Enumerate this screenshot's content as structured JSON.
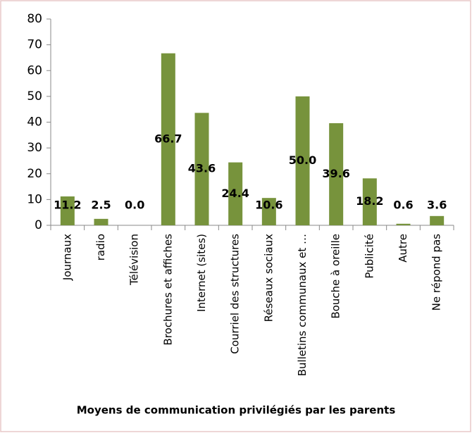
{
  "chart_data": {
    "type": "bar",
    "title": "Moyens de communication privilégiés par les parents",
    "categories": [
      "Journaux",
      "radio",
      "Télévision",
      "Brochures et affiches",
      "Internet (sites)",
      "Courriel des structures",
      "Réseaux sociaux",
      "Bulletins communaux et …",
      "Bouche à oreille",
      "Publicité",
      "Autre",
      "Ne répond pas"
    ],
    "values": [
      11.2,
      2.5,
      0,
      66.7,
      43.6,
      24.4,
      10.6,
      50,
      39.6,
      18.2,
      0.6,
      3.6
    ],
    "value_labels": [
      "11.2",
      "2.5",
      "0.0",
      "66.7",
      "43.6",
      "24.4",
      "10.6",
      "50.0",
      "39.6",
      "18.2",
      "0.6",
      "3.6"
    ],
    "color": "#77933c",
    "ylim": [
      0,
      80
    ],
    "yticks": [
      0,
      10,
      20,
      30,
      40,
      50,
      60,
      70,
      80
    ],
    "grid": false
  }
}
